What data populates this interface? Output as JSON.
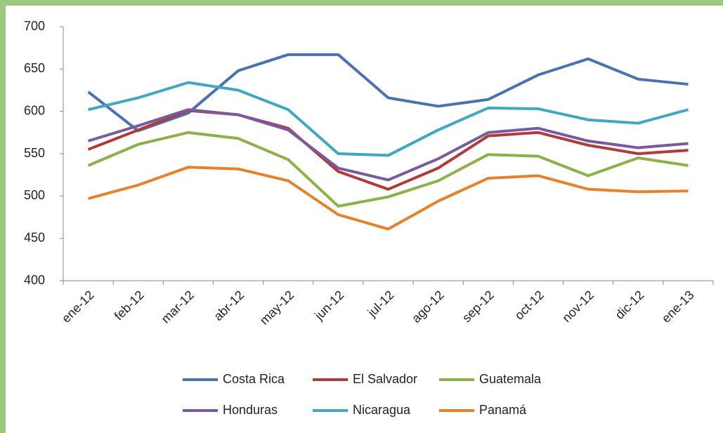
{
  "chart_data": {
    "type": "line",
    "categories": [
      "ene-12",
      "feb-12",
      "mar-12",
      "abr-12",
      "may-12",
      "jun-12",
      "jul-12",
      "ago-12",
      "sep-12",
      "oct-12",
      "nov-12",
      "dic-12",
      "ene-13"
    ],
    "series": [
      {
        "name": "Costa Rica",
        "color": "#4a72b0",
        "values": [
          623,
          577,
          598,
          648,
          667,
          667,
          616,
          606,
          614,
          643,
          662,
          638,
          632
        ]
      },
      {
        "name": "El Salvador",
        "color": "#b03c3a",
        "values": [
          555,
          578,
          601,
          596,
          580,
          529,
          508,
          533,
          571,
          575,
          560,
          550,
          554
        ]
      },
      {
        "name": "Guatemala",
        "color": "#8cb04a",
        "values": [
          536,
          561,
          575,
          568,
          543,
          488,
          499,
          518,
          549,
          547,
          524,
          545,
          536
        ]
      },
      {
        "name": "Honduras",
        "color": "#7a5a9e",
        "values": [
          565,
          583,
          602,
          596,
          578,
          533,
          519,
          544,
          575,
          580,
          565,
          557,
          562
        ]
      },
      {
        "name": "Nicaragua",
        "color": "#40a8c0",
        "values": [
          602,
          616,
          634,
          625,
          602,
          550,
          548,
          578,
          604,
          603,
          590,
          586,
          602
        ]
      },
      {
        "name": "Panamá",
        "color": "#e6822e",
        "values": [
          497,
          513,
          534,
          532,
          518,
          478,
          461,
          494,
          521,
          524,
          508,
          505,
          506
        ]
      }
    ],
    "ylim": [
      400,
      700
    ],
    "yticks": [
      400,
      450,
      500,
      550,
      600,
      650,
      700
    ],
    "grid": false,
    "legend": "bottom"
  }
}
